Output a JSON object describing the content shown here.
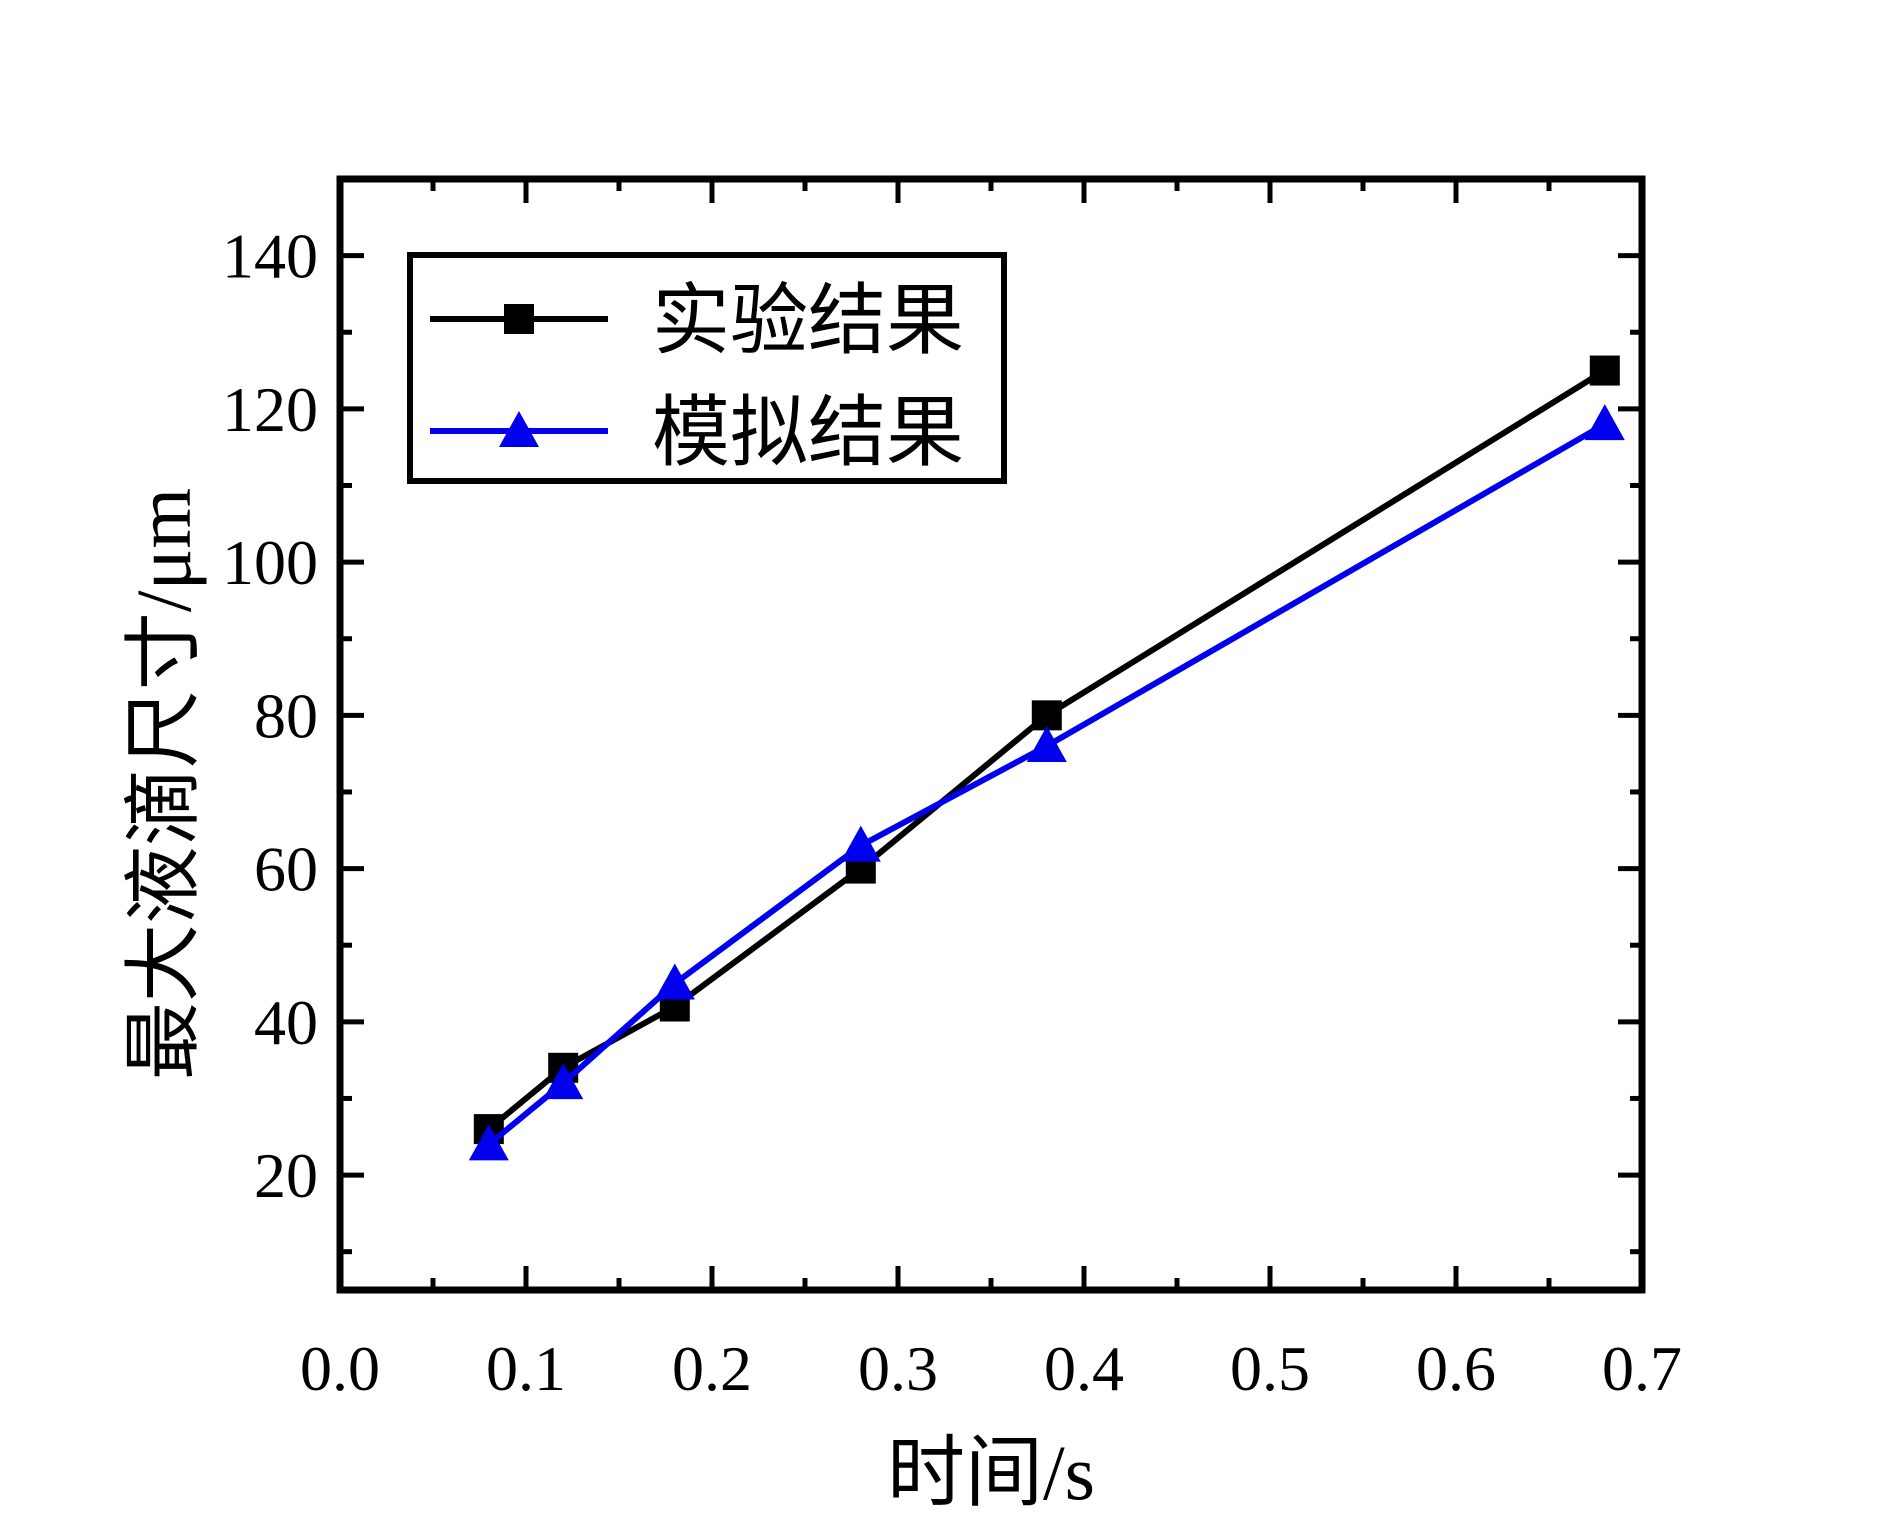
{
  "chart_data": {
    "type": "line",
    "xlabel": "时间/s",
    "ylabel": "最大液滴尺寸/μm",
    "xlim": [
      0.0,
      0.7
    ],
    "ylim": [
      5,
      150
    ],
    "xticks": [
      0.0,
      0.1,
      0.2,
      0.3,
      0.4,
      0.5,
      0.6,
      0.7
    ],
    "xtick_labels": [
      "0.0",
      "0.1",
      "0.2",
      "0.3",
      "0.4",
      "0.5",
      "0.6",
      "0.7"
    ],
    "yticks": [
      20,
      40,
      60,
      80,
      100,
      120,
      140
    ],
    "ytick_labels": [
      "20",
      "40",
      "60",
      "80",
      "100",
      "120",
      "140"
    ],
    "grid": false,
    "legend_position": "top-left",
    "series": [
      {
        "name": "实验结果",
        "color": "#000000",
        "marker": "square",
        "x": [
          0.08,
          0.12,
          0.18,
          0.28,
          0.38,
          0.68
        ],
        "y": [
          26,
          34,
          42,
          60,
          80,
          125
        ]
      },
      {
        "name": "模拟结果",
        "color": "#0000ee",
        "marker": "triangle",
        "x": [
          0.08,
          0.12,
          0.18,
          0.28,
          0.38,
          0.68
        ],
        "y": [
          24,
          32,
          45,
          63,
          76,
          118
        ]
      }
    ]
  }
}
